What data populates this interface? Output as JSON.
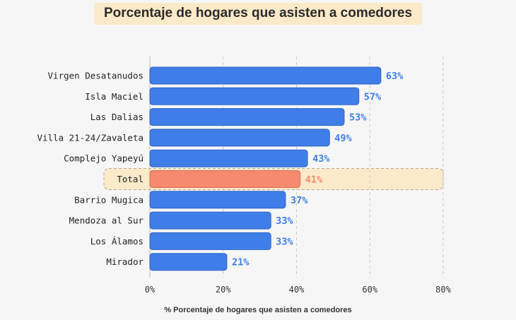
{
  "chart_data": {
    "type": "bar",
    "orientation": "horizontal",
    "title": "Porcentaje de hogares que asisten a comedores",
    "xlabel": "% Porcentaje de hogares que asisten a comedores",
    "ylabel": "",
    "xlim": [
      0,
      80
    ],
    "ticks": [
      "0%",
      "20%",
      "40%",
      "60%",
      "80%"
    ],
    "tick_values": [
      0,
      20,
      40,
      60,
      80
    ],
    "categories": [
      "Virgen Desatanudos",
      "Isla Maciel",
      "Las Dalias",
      "Villa 21-24/Zavaleta",
      "Complejo Yapeyú",
      "Total",
      "Barrio Mugica",
      "Mendoza al Sur",
      "Los Álamos",
      "Mirador"
    ],
    "values": [
      63,
      57,
      53,
      49,
      43,
      41,
      37,
      33,
      33,
      21
    ],
    "value_labels": [
      "63%",
      "57%",
      "53%",
      "49%",
      "43%",
      "41%",
      "37%",
      "33%",
      "33%",
      "21%"
    ],
    "highlight_category": "Total",
    "grid": "vertical dashed",
    "colors": {
      "bar": "#3f7ee8",
      "bar_border": "#2f63c4",
      "label": "#3f7ee8",
      "highlight_bar": "#f68a6e",
      "highlight_border": "#d96a50",
      "highlight_label": "#f68a6e",
      "highlight_band": "#fbeac9",
      "grid": "#c8c8c8"
    }
  }
}
